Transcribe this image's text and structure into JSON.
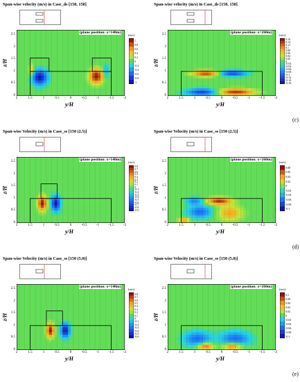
{
  "chart_data": [
    {
      "type": "heatmap",
      "row": 0,
      "col": 0,
      "title": "Span-wise velocity (m/s) in Case_ds [150, 150]",
      "plane": "(plane position: x=148m)",
      "xlabel": "y/H",
      "ylabel": "z/H",
      "xlim": [
        2,
        -2
      ],
      "ylim": [
        0,
        2.7
      ],
      "xticks": [
        "2",
        "1.5",
        "1",
        "0.5",
        "0",
        "-0.5",
        "-1",
        "-1.5",
        "-2"
      ],
      "yticks": [
        "0",
        "0.5",
        "1",
        "1.5",
        "2",
        "2.5"
      ],
      "unit": "(m/s)",
      "colorbar": [
        "1",
        "0.8",
        "0.6",
        "0.4",
        "0.2",
        "0",
        "-0.2",
        "-0.4",
        "-0.6",
        "-0.8",
        "-1"
      ],
      "sublabel": ""
    },
    {
      "type": "heatmap",
      "row": 0,
      "col": 1,
      "title": "Span-wise velocity (m/s) in Case_ds [150, 150]",
      "plane": "(plane position: x=260m)",
      "xlabel": "y/H",
      "ylabel": "z/H",
      "xlim": [
        2,
        -2
      ],
      "ylim": [
        0,
        2.7
      ],
      "xticks": [
        "2",
        "1.5",
        "1",
        "0.5",
        "0",
        "-0.5",
        "-1",
        "-1.5",
        "-2"
      ],
      "yticks": [
        "0",
        "0.5",
        "1",
        "1.5",
        "2",
        "2.5"
      ],
      "unit": "(m/s)",
      "colorbar": [
        "0.16",
        "0.14",
        "0.12",
        "0.1",
        "0.08",
        "0.06",
        "0.04",
        "0.02",
        "0",
        "-0.02",
        "-0.04",
        "-0.06",
        "-0.08",
        "-0.1",
        "-0.12",
        "-0.14",
        "-0.16"
      ],
      "sublabel": "(c)"
    },
    {
      "type": "heatmap",
      "row": 1,
      "col": 0,
      "title": "Span-wise Velocity (m/s) in Case_ss [150 (2.5)]",
      "plane": "(plane position: x=148m)",
      "xlabel": "y/H",
      "ylabel": "z/H",
      "xlim": [
        2,
        -2
      ],
      "ylim": [
        0,
        2.7
      ],
      "xticks": [
        "2",
        "1.5",
        "1",
        "0.5",
        "0",
        "-0.5",
        "-1",
        "-1.5",
        "-2"
      ],
      "yticks": [
        "0",
        "0.5",
        "1",
        "1.5",
        "2",
        "2.5"
      ],
      "unit": "(m/s)",
      "colorbar": [
        "0.8",
        "0.7",
        "0.6",
        "0.5",
        "0.4",
        "0.3",
        "0.2",
        "0.1",
        "0",
        "-0.1",
        "-0.2",
        "-0.3",
        "-0.4",
        "-0.5",
        "-0.6",
        "-0.7",
        "-0.8",
        "-0.9"
      ],
      "sublabel": ""
    },
    {
      "type": "heatmap",
      "row": 1,
      "col": 1,
      "title": "Span-wise Velocity (m/s) in Case_ss [150 (2.5)]",
      "plane": "(plane position: x=260m)",
      "xlabel": "y/H",
      "ylabel": "z/H",
      "xlim": [
        2,
        -2
      ],
      "ylim": [
        0,
        2.7
      ],
      "xticks": [
        "2",
        "1.5",
        "1",
        "0.5",
        "0",
        "-0.5",
        "-1",
        "-1.5",
        "-2"
      ],
      "yticks": [
        "0",
        "0.5",
        "1",
        "1.5",
        "2",
        "2.5"
      ],
      "unit": "(m/s)",
      "colorbar": [
        "0.08",
        "0.06",
        "0.04",
        "0.02",
        "0",
        "-0.02",
        "-0.04",
        "-0.06",
        "-0.08",
        "-0.1"
      ],
      "sublabel": "(d)"
    },
    {
      "type": "heatmap",
      "row": 2,
      "col": 0,
      "title": "Span-wise Velocity (m/s) in Case_ss [150 (5.0)]",
      "plane": "(plane position: x=148m)",
      "xlabel": "y/H",
      "ylabel": "z/H",
      "xlim": [
        2,
        -2
      ],
      "ylim": [
        0,
        2.7
      ],
      "xticks": [
        "2",
        "1.5",
        "1",
        "0.5",
        "0",
        "-0.5",
        "-1",
        "-1.5",
        "-2"
      ],
      "yticks": [
        "0",
        "0.5",
        "1",
        "1.5",
        "2",
        "2.5"
      ],
      "unit": "(m/s)",
      "colorbar": [
        "0.8",
        "0.7",
        "0.6",
        "0.5",
        "0.4",
        "0.3",
        "0.2",
        "0.1",
        "0",
        "-0.1",
        "-0.2",
        "-0.3",
        "-0.4",
        "-0.5",
        "-0.6"
      ],
      "sublabel": ""
    },
    {
      "type": "heatmap",
      "row": 2,
      "col": 1,
      "title": "Span-wise Velocity (m/s) in Case_ss [150 (5.0)]",
      "plane": "(plane position: x=260m)",
      "xlabel": "y/H",
      "ylabel": "z/H",
      "xlim": [
        2,
        -2
      ],
      "ylim": [
        0,
        2.7
      ],
      "xticks": [
        "2",
        "1.5",
        "1",
        "0.5",
        "0",
        "-0.5",
        "-1",
        "-1.5",
        "-2"
      ],
      "yticks": [
        "0",
        "0.5",
        "1",
        "1.5",
        "2",
        "2.5"
      ],
      "unit": "(m/s)",
      "colorbar": [
        "0.1",
        "0.08",
        "0.06",
        "0.04",
        "0.02",
        "0",
        "-0.02",
        "-0.04",
        "-0.06",
        "-0.08",
        "-0.1"
      ],
      "sublabel": "(e)"
    }
  ]
}
